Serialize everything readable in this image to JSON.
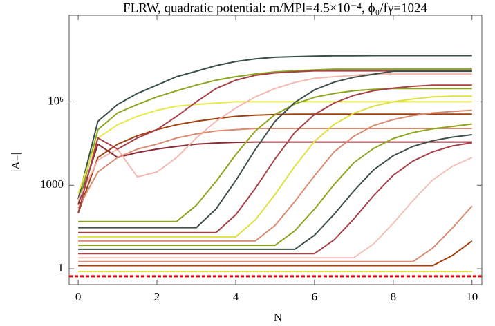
{
  "chart_data": {
    "type": "line",
    "title": "FLRW, quadratic potential: m/MPl=4.5×10⁻⁴, ϕ₀/fγ=1024",
    "xlabel": "N",
    "ylabel": "|A₋|",
    "log_y": true,
    "xlim": [
      -0.23,
      10.25
    ],
    "ylim": [
      0.27,
      1300000000
    ],
    "xticks": [
      0,
      2,
      4,
      6,
      8,
      10
    ],
    "yticks": [
      1,
      1000,
      {
        "value": 1000000,
        "label": "10⁶"
      }
    ],
    "hline": {
      "value": 0.54,
      "color": "#e00000"
    },
    "x": [
      0,
      0.5,
      1,
      1.5,
      2,
      2.5,
      3,
      3.5,
      4,
      4.5,
      5,
      5.5,
      6,
      6.5,
      7,
      7.5,
      8,
      8.5,
      9,
      9.5,
      10
    ],
    "series": [
      {
        "color": "#3a4f45",
        "values": [
          316,
          200000,
          800000,
          2000000,
          4000000,
          8000000,
          12600000,
          20000000,
          28000000,
          35000000,
          40000000,
          42000000,
          44000000,
          45000000,
          45000000,
          46000000,
          46000000,
          46000000,
          46000000,
          46000000,
          46000000
        ]
      },
      {
        "color": "#8aa51e",
        "values": [
          200,
          100000,
          400000,
          800000,
          1500000,
          2500000,
          4000000,
          6000000,
          8000000,
          10000000,
          12000000,
          13000000,
          14000000,
          15000000,
          15000000,
          15000000,
          15000000,
          15000000,
          15000000,
          15000000,
          15000000
        ]
      },
      {
        "color": "#e8e84a",
        "values": [
          500,
          50000,
          150000,
          300000,
          500000,
          700000,
          800000,
          900000,
          1000000,
          1000000,
          1000000,
          1000000,
          1000000,
          1000000,
          1000000,
          1000000,
          1000000,
          1000000,
          1000000,
          1000000,
          1000000
        ]
      },
      {
        "color": "#a0400f",
        "values": [
          100,
          10000,
          30000,
          60000,
          100000,
          150000,
          200000,
          250000,
          300000,
          330000,
          350000,
          360000,
          360000,
          360000,
          360000,
          360000,
          360000,
          360000,
          360000,
          360000,
          360000
        ]
      },
      {
        "color": "#8b2a35",
        "values": [
          200,
          30000,
          10000,
          15000,
          20000,
          25000,
          30000,
          33000,
          35000,
          36000,
          36000,
          36000,
          36000,
          36000,
          36000,
          36000,
          36000,
          36000,
          36000,
          36000,
          36000
        ]
      },
      {
        "color": "#f4b8b0",
        "values": [
          300,
          8000,
          20000,
          2000,
          3000,
          10000,
          50000,
          200000,
          600000,
          1500000,
          3000000,
          5000000,
          7000000,
          8000000,
          9000000,
          10000000,
          10000000,
          10000000,
          10000000,
          10000000,
          10000000
        ]
      },
      {
        "color": "#d98a70",
        "values": [
          150,
          3000,
          10000,
          20000,
          30000,
          50000,
          70000,
          90000,
          100000,
          110000,
          110000,
          110000,
          110000,
          110000,
          110000,
          110000,
          110000,
          110000,
          110000,
          110000,
          110000
        ]
      },
      {
        "color": "#a84048",
        "values": [
          100,
          50000,
          20000,
          50000,
          100000,
          300000,
          1000000,
          3000000,
          6000000,
          9000000,
          11000000,
          12000000,
          13000000,
          13000000,
          13000000,
          13000000,
          13000000,
          13000000,
          13000000,
          13000000,
          13000000
        ]
      },
      {
        "color": "#8aa51e",
        "values": [
          50,
          50,
          50,
          50,
          50,
          50,
          190,
          1380,
          12600,
          90000,
          350000,
          830000,
          1450000,
          2000000,
          2500000,
          2800000,
          3000000,
          3000000,
          3000000,
          3000000,
          3000000
        ]
      },
      {
        "color": "#3d5045",
        "values": [
          30,
          30,
          30,
          30,
          30,
          30,
          30,
          141,
          1480,
          19500,
          200000,
          950000,
          2700000,
          5100000,
          7600000,
          9800000,
          12600000,
          12600000,
          12600000,
          12600000,
          12600000
        ]
      },
      {
        "color": "#a84048",
        "values": [
          20,
          20,
          20,
          20,
          20,
          20,
          20,
          20,
          87,
          780,
          8900,
          80000,
          350000,
          910000,
          1700000,
          2500000,
          3100000,
          3600000,
          4000000,
          4000000,
          4000000
        ]
      },
      {
        "color": "#e0e040",
        "values": [
          14,
          14,
          14,
          14,
          14,
          14,
          14,
          14,
          14,
          57,
          470,
          4800,
          38000,
          155000,
          390000,
          700000,
          1000000,
          1260000,
          1500000,
          1600000,
          1600000
        ]
      },
      {
        "color": "#d98a70",
        "values": [
          10,
          10,
          10,
          10,
          10,
          10,
          10,
          10,
          10,
          10,
          36,
          260,
          2200,
          16000,
          58000,
          140000,
          230000,
          320000,
          400000,
          450000,
          500000
        ]
      },
      {
        "color": "#8aa51e",
        "values": [
          7,
          7,
          7,
          7,
          7,
          7,
          7,
          7,
          7,
          7,
          7,
          23,
          140,
          1070,
          6500,
          21000,
          48000,
          79000,
          107000,
          130000,
          160000
        ]
      },
      {
        "color": "#3d5045",
        "values": [
          5,
          5,
          5,
          5,
          5,
          5,
          5,
          5,
          5,
          5,
          5,
          5,
          16,
          91,
          630,
          3600,
          11500,
          25000,
          40000,
          54000,
          66000
        ]
      },
      {
        "color": "#a84048",
        "values": [
          3.5,
          3.5,
          3.5,
          3.5,
          3.5,
          3.5,
          3.5,
          3.5,
          3.5,
          3.5,
          3.5,
          3.5,
          3.5,
          11,
          62,
          420,
          2300,
          7400,
          16000,
          26000,
          34000
        ]
      },
      {
        "color": "#f4c0b8",
        "values": [
          2.5,
          2.5,
          2.5,
          2.5,
          2.5,
          2.5,
          2.5,
          2.5,
          2.5,
          2.5,
          2.5,
          2.5,
          2.5,
          2.5,
          2.5,
          7.8,
          43,
          280,
          1550,
          4800,
          10000
        ]
      },
      {
        "color": "#d98a70",
        "values": [
          1.8,
          1.8,
          1.8,
          1.8,
          1.8,
          1.8,
          1.8,
          1.8,
          1.8,
          1.8,
          1.8,
          1.8,
          1.8,
          1.8,
          1.8,
          1.8,
          1.8,
          1.8,
          5.5,
          29,
          180
        ]
      },
      {
        "color": "#a0400f",
        "values": [
          1.3,
          1.3,
          1.3,
          1.3,
          1.3,
          1.3,
          1.3,
          1.3,
          1.3,
          1.3,
          1.3,
          1.3,
          1.3,
          1.3,
          1.3,
          1.3,
          1.3,
          1.3,
          1.3,
          3,
          10
        ]
      },
      {
        "color": "#e0e040",
        "values": [
          0.8,
          0.8,
          0.8,
          0.8,
          0.8,
          0.8,
          0.8,
          0.8,
          0.8,
          0.8,
          0.8,
          0.8,
          0.8,
          0.8,
          0.8,
          0.8,
          0.8,
          0.8,
          0.8,
          0.8,
          0.8
        ]
      }
    ]
  }
}
